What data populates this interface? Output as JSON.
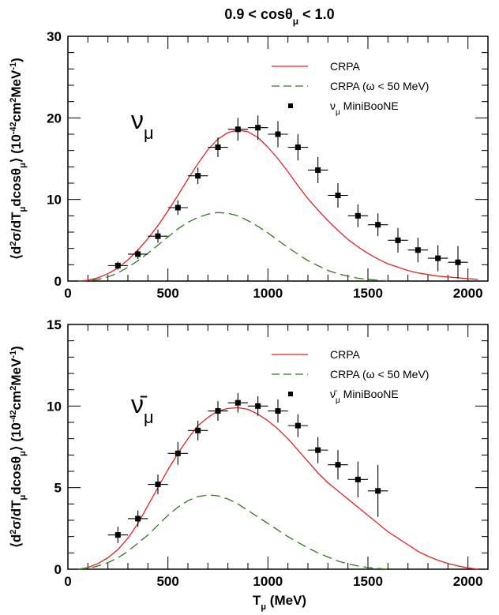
{
  "figure": {
    "title": "0.9 < cosθ_μ < 1.0",
    "title_parts": {
      "pre": "0.9 < cos",
      "theta": "θ",
      "mu": "μ",
      "post": " < 1.0"
    },
    "ylabel": "⟨d²σ/dT_μdcosθ_μ⟩ (10⁻⁴²cm²MeV⁻¹)",
    "ylabel_parts": {
      "a": "⟨d",
      "sq": "2",
      "b": "σ/dT",
      "mu1": "μ",
      "c": "dcos",
      "theta": "θ",
      "mu2": "μ",
      "d": "⟩ (10",
      "exp": "-42",
      "e": "cm",
      "sq2": "2",
      "f": "MeV",
      "exp2": "-1",
      "g": ")"
    },
    "xlabel": "T_μ (MeV)",
    "xlabel_parts": {
      "a": "T",
      "mu": "μ",
      "b": " (MeV)"
    }
  },
  "colors": {
    "crpa": "#e8221e",
    "crpa_low": "#2e7a1c",
    "data": "#000000"
  },
  "chart_data": [
    {
      "type": "line",
      "panel": "top",
      "particle_label": {
        "nu": "ν",
        "mu": "μ"
      },
      "xlim": [
        0,
        2100
      ],
      "ylim": [
        0,
        30
      ],
      "x_ticks": [
        0,
        500,
        1000,
        1500,
        2000
      ],
      "y_ticks": [
        0,
        10,
        20,
        30
      ],
      "tick_labels_x": [
        "0",
        "500",
        "1000",
        "1500",
        "2000"
      ],
      "tick_labels_y": [
        "0",
        "10",
        "20",
        "30"
      ],
      "legend_placement": "top-right",
      "series": [
        {
          "name": "CRPA",
          "style": "solid",
          "x": [
            50,
            100,
            150,
            200,
            250,
            300,
            350,
            400,
            450,
            500,
            550,
            600,
            650,
            700,
            750,
            800,
            850,
            900,
            950,
            1000,
            1050,
            1100,
            1150,
            1200,
            1250,
            1300,
            1350,
            1400,
            1450,
            1500,
            1550,
            1600,
            1650,
            1700,
            1750,
            1800,
            1850,
            1900,
            1950,
            2000,
            2050
          ],
          "y": [
            0.0,
            0.1,
            0.4,
            0.9,
            1.6,
            2.6,
            3.8,
            5.2,
            6.8,
            8.6,
            10.5,
            12.5,
            14.4,
            16.1,
            17.4,
            18.2,
            18.5,
            18.3,
            17.6,
            16.4,
            15.0,
            13.4,
            11.7,
            10.1,
            8.7,
            7.4,
            6.2,
            5.1,
            4.2,
            3.4,
            2.7,
            2.1,
            1.7,
            1.3,
            1.0,
            0.8,
            0.6,
            0.5,
            0.4,
            0.3,
            0.2
          ]
        },
        {
          "name": "CRPA (ω < 50 MeV)",
          "name_parts": {
            "a": "CRPA (",
            "omega": "ω",
            "b": " < 50 MeV)"
          },
          "style": "dashed",
          "x": [
            50,
            100,
            150,
            200,
            250,
            300,
            350,
            400,
            450,
            500,
            550,
            600,
            650,
            700,
            750,
            800,
            850,
            900,
            950,
            1000,
            1050,
            1100,
            1150,
            1200,
            1250,
            1300,
            1350,
            1400,
            1450,
            1500,
            1550,
            1600
          ],
          "y": [
            0.0,
            0.05,
            0.2,
            0.5,
            1.0,
            1.7,
            2.5,
            3.4,
            4.4,
            5.4,
            6.4,
            7.2,
            7.8,
            8.2,
            8.4,
            8.3,
            8.0,
            7.4,
            6.7,
            5.9,
            5.0,
            4.1,
            3.3,
            2.5,
            1.9,
            1.3,
            0.9,
            0.6,
            0.35,
            0.2,
            0.1,
            0.03
          ]
        },
        {
          "name": "ν_μ MiniBooNE",
          "name_parts": {
            "nu": "ν",
            "mu": "μ",
            "b": " MiniBooNE"
          },
          "style": "points",
          "x": [
            250,
            350,
            450,
            550,
            650,
            750,
            850,
            950,
            1050,
            1150,
            1250,
            1350,
            1450,
            1550,
            1650,
            1750,
            1850,
            1950
          ],
          "y": [
            1.9,
            3.3,
            5.5,
            9.0,
            12.9,
            16.4,
            18.6,
            18.8,
            18.0,
            16.4,
            13.6,
            10.5,
            8.0,
            6.9,
            5.0,
            3.8,
            2.8,
            2.3
          ],
          "yerr": [
            0.5,
            0.6,
            0.8,
            0.9,
            1.0,
            1.2,
            1.4,
            1.5,
            1.6,
            1.6,
            1.6,
            1.5,
            1.4,
            1.4,
            1.5,
            1.5,
            1.6,
            2.0
          ],
          "xerr": 50
        }
      ]
    },
    {
      "type": "line",
      "panel": "bottom",
      "particle_label": {
        "nu": "ν̄",
        "mu": "μ"
      },
      "xlim": [
        0,
        2100
      ],
      "ylim": [
        0,
        15
      ],
      "x_ticks": [
        0,
        500,
        1000,
        1500,
        2000
      ],
      "y_ticks": [
        0,
        5,
        10,
        15
      ],
      "tick_labels_x": [
        "0",
        "500",
        "1000",
        "1500",
        "2000"
      ],
      "tick_labels_y": [
        "0",
        "5",
        "10",
        "15"
      ],
      "legend_placement": "top-right",
      "series": [
        {
          "name": "CRPA",
          "style": "solid",
          "x": [
            50,
            100,
            150,
            200,
            250,
            300,
            350,
            400,
            450,
            500,
            550,
            600,
            650,
            700,
            750,
            800,
            850,
            900,
            950,
            1000,
            1050,
            1100,
            1150,
            1200,
            1250,
            1300,
            1350,
            1400,
            1450,
            1500,
            1550,
            1600,
            1650,
            1700,
            1750,
            1800,
            1850,
            1900,
            1950,
            2000,
            2050
          ],
          "y": [
            0.0,
            0.1,
            0.35,
            0.7,
            1.2,
            1.9,
            2.8,
            3.9,
            5.0,
            6.1,
            7.1,
            8.0,
            8.8,
            9.3,
            9.7,
            9.85,
            9.9,
            9.8,
            9.5,
            9.1,
            8.6,
            8.0,
            7.3,
            6.6,
            5.9,
            5.3,
            4.8,
            4.3,
            3.8,
            3.3,
            2.8,
            2.3,
            1.9,
            1.5,
            1.1,
            0.8,
            0.55,
            0.35,
            0.2,
            0.08,
            0.0
          ]
        },
        {
          "name": "CRPA (ω < 50 MeV)",
          "name_parts": {
            "a": "CRPA (",
            "omega": "ω",
            "b": " < 50 MeV)"
          },
          "style": "dashed",
          "x": [
            50,
            100,
            150,
            200,
            250,
            300,
            350,
            400,
            450,
            500,
            550,
            600,
            650,
            700,
            750,
            800,
            850,
            900,
            950,
            1000,
            1050,
            1100,
            1150,
            1200,
            1250,
            1300,
            1350,
            1400,
            1450,
            1500,
            1550,
            1600
          ],
          "y": [
            0.0,
            0.05,
            0.2,
            0.4,
            0.7,
            1.1,
            1.6,
            2.1,
            2.7,
            3.3,
            3.8,
            4.2,
            4.45,
            4.55,
            4.5,
            4.3,
            4.0,
            3.6,
            3.2,
            2.8,
            2.4,
            2.0,
            1.65,
            1.3,
            1.0,
            0.75,
            0.5,
            0.33,
            0.2,
            0.1,
            0.05,
            0.0
          ]
        },
        {
          "name": "ν̄_μ MiniBooNE",
          "name_parts": {
            "nu": "ν̄",
            "mu": "μ",
            "b": " MiniBooNE"
          },
          "style": "points",
          "x": [
            250,
            350,
            450,
            550,
            650,
            750,
            850,
            950,
            1050,
            1150,
            1250,
            1350,
            1450,
            1550
          ],
          "y": [
            2.1,
            3.1,
            5.2,
            7.1,
            8.5,
            9.7,
            10.2,
            10.0,
            9.7,
            8.8,
            7.3,
            6.4,
            5.5,
            4.8
          ],
          "yerr": [
            0.5,
            0.5,
            0.6,
            0.7,
            0.6,
            0.6,
            0.6,
            0.6,
            0.7,
            0.7,
            0.8,
            0.9,
            1.1,
            1.6
          ],
          "xerr": 50
        }
      ]
    }
  ]
}
